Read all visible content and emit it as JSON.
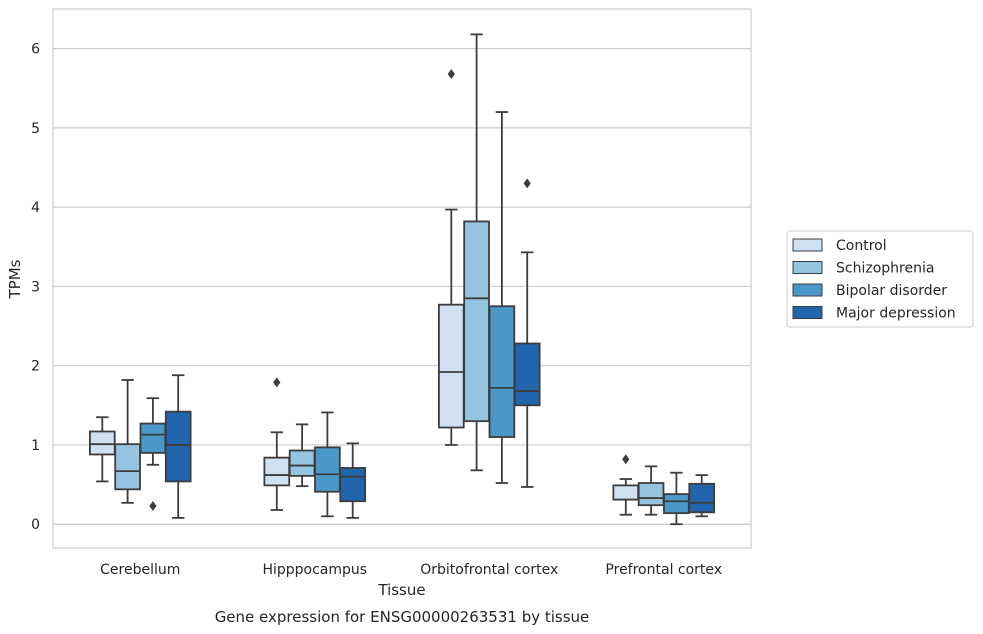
{
  "chart_data": {
    "type": "box",
    "title": "",
    "caption": "Gene expression for ENSG00000263531 by tissue",
    "xlabel": "Tissue",
    "ylabel": "TPMs",
    "ylim": [
      -0.3,
      6.5
    ],
    "yticks": [
      "0",
      "1",
      "2",
      "3",
      "4",
      "5",
      "6"
    ],
    "grid": "horizontal",
    "legend_position": "right",
    "categories": [
      "Cerebellum",
      "Hipppocampus",
      "Orbitofrontal cortex",
      "Prefrontal cortex"
    ],
    "series": [
      {
        "name": "Control",
        "color": "#d0e1f2",
        "boxes": [
          {
            "whisker_low": 0.54,
            "q1": 0.88,
            "median": 1.01,
            "q3": 1.17,
            "whisker_high": 1.35,
            "outliers": []
          },
          {
            "whisker_low": 0.18,
            "q1": 0.49,
            "median": 0.62,
            "q3": 0.84,
            "whisker_high": 1.16,
            "outliers": [
              1.79
            ]
          },
          {
            "whisker_low": 1.0,
            "q1": 1.22,
            "median": 1.92,
            "q3": 2.77,
            "whisker_high": 3.97,
            "outliers": [
              5.68
            ]
          },
          {
            "whisker_low": 0.12,
            "q1": 0.31,
            "median": 0.31,
            "q3": 0.49,
            "whisker_high": 0.57,
            "outliers": [
              0.82
            ]
          }
        ]
      },
      {
        "name": "Schizophrenia",
        "color": "#94c4df",
        "boxes": [
          {
            "whisker_low": 0.27,
            "q1": 0.44,
            "median": 0.67,
            "q3": 1.01,
            "whisker_high": 1.82,
            "outliers": []
          },
          {
            "whisker_low": 0.48,
            "q1": 0.61,
            "median": 0.74,
            "q3": 0.93,
            "whisker_high": 1.26,
            "outliers": []
          },
          {
            "whisker_low": 0.68,
            "q1": 1.3,
            "median": 2.85,
            "q3": 3.82,
            "whisker_high": 6.18,
            "outliers": []
          },
          {
            "whisker_low": 0.12,
            "q1": 0.24,
            "median": 0.33,
            "q3": 0.52,
            "whisker_high": 0.73,
            "outliers": []
          }
        ]
      },
      {
        "name": "Bipolar disorder",
        "color": "#4a98c9",
        "boxes": [
          {
            "whisker_low": 0.75,
            "q1": 0.9,
            "median": 1.13,
            "q3": 1.27,
            "whisker_high": 1.59,
            "outliers": [
              0.23
            ]
          },
          {
            "whisker_low": 0.1,
            "q1": 0.41,
            "median": 0.63,
            "q3": 0.97,
            "whisker_high": 1.41,
            "outliers": []
          },
          {
            "whisker_low": 0.52,
            "q1": 1.1,
            "median": 1.72,
            "q3": 2.75,
            "whisker_high": 5.2,
            "outliers": []
          },
          {
            "whisker_low": 0.0,
            "q1": 0.14,
            "median": 0.29,
            "q3": 0.38,
            "whisker_high": 0.65,
            "outliers": []
          }
        ]
      },
      {
        "name": "Major depression",
        "color": "#2166ac",
        "boxes": [
          {
            "whisker_low": 0.08,
            "q1": 0.54,
            "median": 1.0,
            "q3": 1.42,
            "whisker_high": 1.88,
            "outliers": []
          },
          {
            "whisker_low": 0.08,
            "q1": 0.29,
            "median": 0.6,
            "q3": 0.71,
            "whisker_high": 1.02,
            "outliers": []
          },
          {
            "whisker_low": 0.47,
            "q1": 1.5,
            "median": 1.68,
            "q3": 2.28,
            "whisker_high": 3.43,
            "outliers": [
              4.3
            ]
          },
          {
            "whisker_low": 0.1,
            "q1": 0.15,
            "median": 0.27,
            "q3": 0.51,
            "whisker_high": 0.62,
            "outliers": []
          }
        ]
      }
    ]
  }
}
